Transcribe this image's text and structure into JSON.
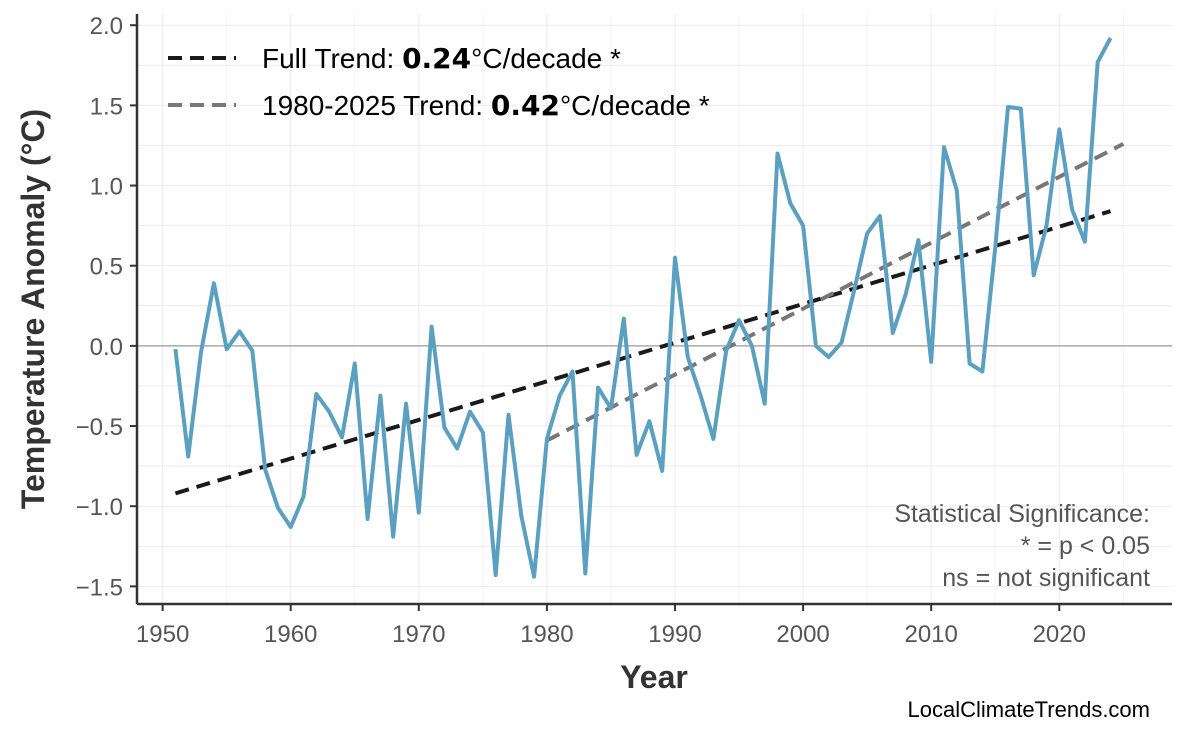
{
  "chart_data": {
    "type": "line",
    "xlabel": "Year",
    "ylabel": "Temperature Anomaly (°C)",
    "xlim": [
      1948,
      2028.8
    ],
    "ylim": [
      -1.61,
      2.07
    ],
    "x_ticks": [
      1950,
      1960,
      1970,
      1980,
      1990,
      2000,
      2010,
      2020
    ],
    "y_ticks": [
      -1.5,
      -1.0,
      -0.5,
      0.0,
      0.5,
      1.0,
      1.5,
      2.0
    ],
    "y_tick_labels": [
      "−1.5",
      "−1.0",
      "−0.5",
      "0.0",
      "0.5",
      "1.0",
      "1.5",
      "2.0"
    ],
    "grid": true,
    "legend_position": "top-left",
    "series": [
      {
        "color": "#5BA0C0",
        "x": [
          1951,
          1952,
          1953,
          1954,
          1955,
          1956,
          1957,
          1958,
          1959,
          1960,
          1961,
          1962,
          1963,
          1964,
          1965,
          1966,
          1967,
          1968,
          1969,
          1970,
          1971,
          1972,
          1973,
          1974,
          1975,
          1976,
          1977,
          1978,
          1979,
          1980,
          1981,
          1982,
          1983,
          1984,
          1985,
          1986,
          1987,
          1988,
          1989,
          1990,
          1991,
          1992,
          1993,
          1994,
          1995,
          1996,
          1997,
          1998,
          1999,
          2000,
          2001,
          2002,
          2003,
          2004,
          2005,
          2006,
          2007,
          2008,
          2009,
          2010,
          2011,
          2012,
          2013,
          2014,
          2015,
          2016,
          2017,
          2018,
          2019,
          2020,
          2021,
          2022,
          2023,
          2024
        ],
        "y": [
          -0.02,
          -0.69,
          -0.04,
          0.39,
          -0.02,
          0.09,
          -0.03,
          -0.77,
          -1.01,
          -1.13,
          -0.94,
          -0.3,
          -0.41,
          -0.57,
          -0.11,
          -1.08,
          -0.31,
          -1.19,
          -0.36,
          -1.04,
          0.12,
          -0.51,
          -0.64,
          -0.41,
          -0.54,
          -1.43,
          -0.43,
          -1.06,
          -1.44,
          -0.58,
          -0.31,
          -0.16,
          -1.42,
          -0.26,
          -0.39,
          0.17,
          -0.68,
          -0.47,
          -0.78,
          0.55,
          -0.07,
          -0.31,
          -0.58,
          -0.03,
          0.16,
          0.0,
          -0.36,
          1.2,
          0.89,
          0.75,
          0.0,
          -0.07,
          0.02,
          0.35,
          0.7,
          0.81,
          0.08,
          0.32,
          0.66,
          -0.1,
          1.24,
          0.97,
          -0.11,
          -0.16,
          0.61,
          1.49,
          1.48,
          0.44,
          0.75,
          1.35,
          0.85,
          0.65,
          1.77,
          1.92
        ]
      }
    ],
    "trends": [
      {
        "label_prefix": "Full Trend: ",
        "rate": "0.24",
        "label_suffix": "°C/decade *",
        "color": "#1a1a1a",
        "x": [
          1951,
          2024
        ],
        "y": [
          -0.92,
          0.84
        ]
      },
      {
        "label_prefix": "1980-2025 Trend: ",
        "rate": "0.42",
        "label_suffix": "°C/decade *",
        "color": "#777777",
        "x": [
          1980,
          2025
        ],
        "y": [
          -0.59,
          1.26
        ]
      }
    ],
    "annotation": [
      "Statistical Significance:",
      "* = p < 0.05",
      "ns = not significant"
    ],
    "source": "LocalClimateTrends.com"
  }
}
